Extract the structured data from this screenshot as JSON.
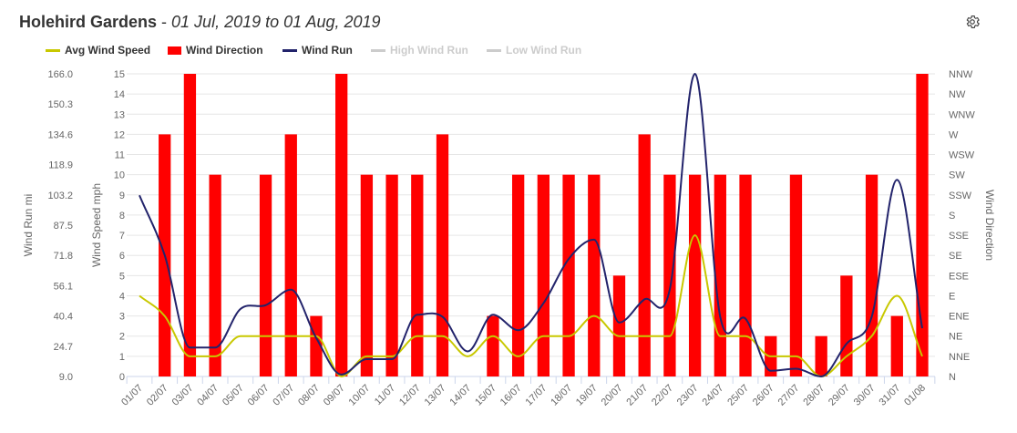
{
  "header": {
    "site": "Holehird Gardens",
    "separator": " - ",
    "date_range": "01 Jul, 2019 to 01 Aug, 2019"
  },
  "toolbar": {
    "settings_icon": "gear-icon"
  },
  "legend": [
    {
      "label": "Avg Wind Speed",
      "color": "#c8c800",
      "symbol": "line",
      "visible": true
    },
    {
      "label": "Wind Direction",
      "color": "#ff0000",
      "symbol": "box",
      "visible": true
    },
    {
      "label": "Wind Run",
      "color": "#22236b",
      "symbol": "line",
      "visible": true
    },
    {
      "label": "High Wind Run",
      "color": "#cccccc",
      "symbol": "line",
      "visible": false
    },
    {
      "label": "Low Wind Run",
      "color": "#cccccc",
      "symbol": "line",
      "visible": false
    }
  ],
  "chart_data": {
    "type": "bar",
    "categories": [
      "01/07",
      "02/07",
      "03/07",
      "04/07",
      "05/07",
      "06/07",
      "07/07",
      "08/07",
      "09/07",
      "10/07",
      "11/07",
      "12/07",
      "13/07",
      "14/07",
      "15/07",
      "16/07",
      "17/07",
      "18/07",
      "19/07",
      "20/07",
      "21/07",
      "22/07",
      "23/07",
      "24/07",
      "25/07",
      "26/07",
      "27/07",
      "28/07",
      "29/07",
      "30/07",
      "31/07",
      "01/08"
    ],
    "y_left_outer": {
      "label": "Wind Run mi",
      "ticks": [
        "9.0",
        "24.7",
        "40.4",
        "56.1",
        "71.8",
        "87.5",
        "103.2",
        "118.9",
        "134.6",
        "150.3",
        "166.0"
      ],
      "ylim": [
        9.0,
        166.0
      ]
    },
    "y_left_inner": {
      "label": "Wind Speed mph",
      "ticks": [
        "0",
        "1",
        "2",
        "3",
        "4",
        "5",
        "6",
        "7",
        "8",
        "9",
        "10",
        "11",
        "12",
        "13",
        "14",
        "15"
      ],
      "ylim": [
        0,
        15
      ]
    },
    "y_right": {
      "label": "Wind Direction",
      "ticks": [
        "N",
        "NNE",
        "NE",
        "ENE",
        "E",
        "ESE",
        "SE",
        "SSE",
        "S",
        "SSW",
        "SW",
        "WSW",
        "W",
        "WNW",
        "NW",
        "NNW"
      ]
    },
    "grid": true,
    "series": [
      {
        "name": "Wind Direction",
        "type": "bar",
        "axis": "direction",
        "color": "#ff0000",
        "values": [
          null,
          12,
          15,
          10,
          null,
          10,
          12,
          3,
          15,
          10,
          10,
          10,
          12,
          null,
          3,
          10,
          10,
          10,
          10,
          5,
          12,
          10,
          10,
          10,
          10,
          2,
          10,
          2,
          5,
          10,
          3,
          15
        ]
      },
      {
        "name": "Avg Wind Speed",
        "type": "line",
        "axis": "speed",
        "color": "#c8c800",
        "values": [
          4,
          3,
          1,
          1,
          2,
          2,
          2,
          2,
          0,
          1,
          1,
          2,
          2,
          1,
          2,
          1,
          2,
          2,
          3,
          2,
          2,
          2,
          7,
          2,
          2,
          1,
          1,
          0,
          1,
          2,
          4,
          1
        ]
      },
      {
        "name": "Wind Run",
        "type": "line",
        "axis": "run",
        "color": "#22236b",
        "values": [
          103,
          72,
          24,
          24,
          44,
          46,
          54,
          29,
          10,
          18,
          18,
          41,
          40,
          22,
          41,
          33,
          47,
          70,
          80,
          37,
          49,
          54,
          166,
          40,
          39,
          12,
          13,
          9,
          26,
          40,
          111,
          34
        ]
      }
    ]
  }
}
